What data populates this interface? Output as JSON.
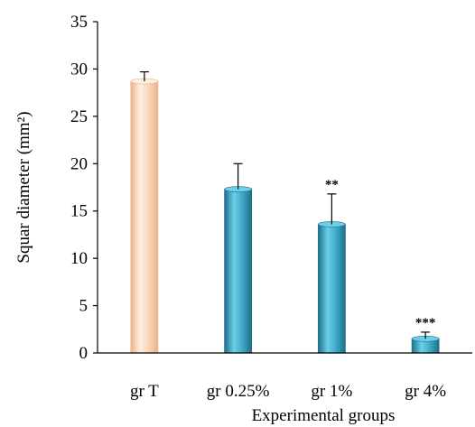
{
  "chart_data": {
    "type": "bar",
    "categories": [
      "gr T",
      "gr 0.25%",
      "gr 1%",
      "gr 4%"
    ],
    "values": [
      28.7,
      17.3,
      13.6,
      1.5
    ],
    "errors": [
      1.0,
      2.7,
      3.2,
      0.7
    ],
    "significance": [
      "",
      "",
      "**",
      "***"
    ],
    "xlabel": "Experimental groups",
    "ylabel": "Squar diameter (mm²)",
    "ylim": [
      0,
      35
    ],
    "yticks": [
      0,
      5,
      10,
      15,
      20,
      25,
      30,
      35
    ],
    "grid": false,
    "legend": "none",
    "colors": {
      "control_fill": "#f6d2b4",
      "control_edge": "#e8b48e",
      "control_highlight": "#fdf0e4",
      "treated_fill": "#3aa3c2",
      "treated_edge": "#1f6f8a",
      "treated_highlight": "#6cd0ea",
      "axis": "#000000"
    }
  }
}
